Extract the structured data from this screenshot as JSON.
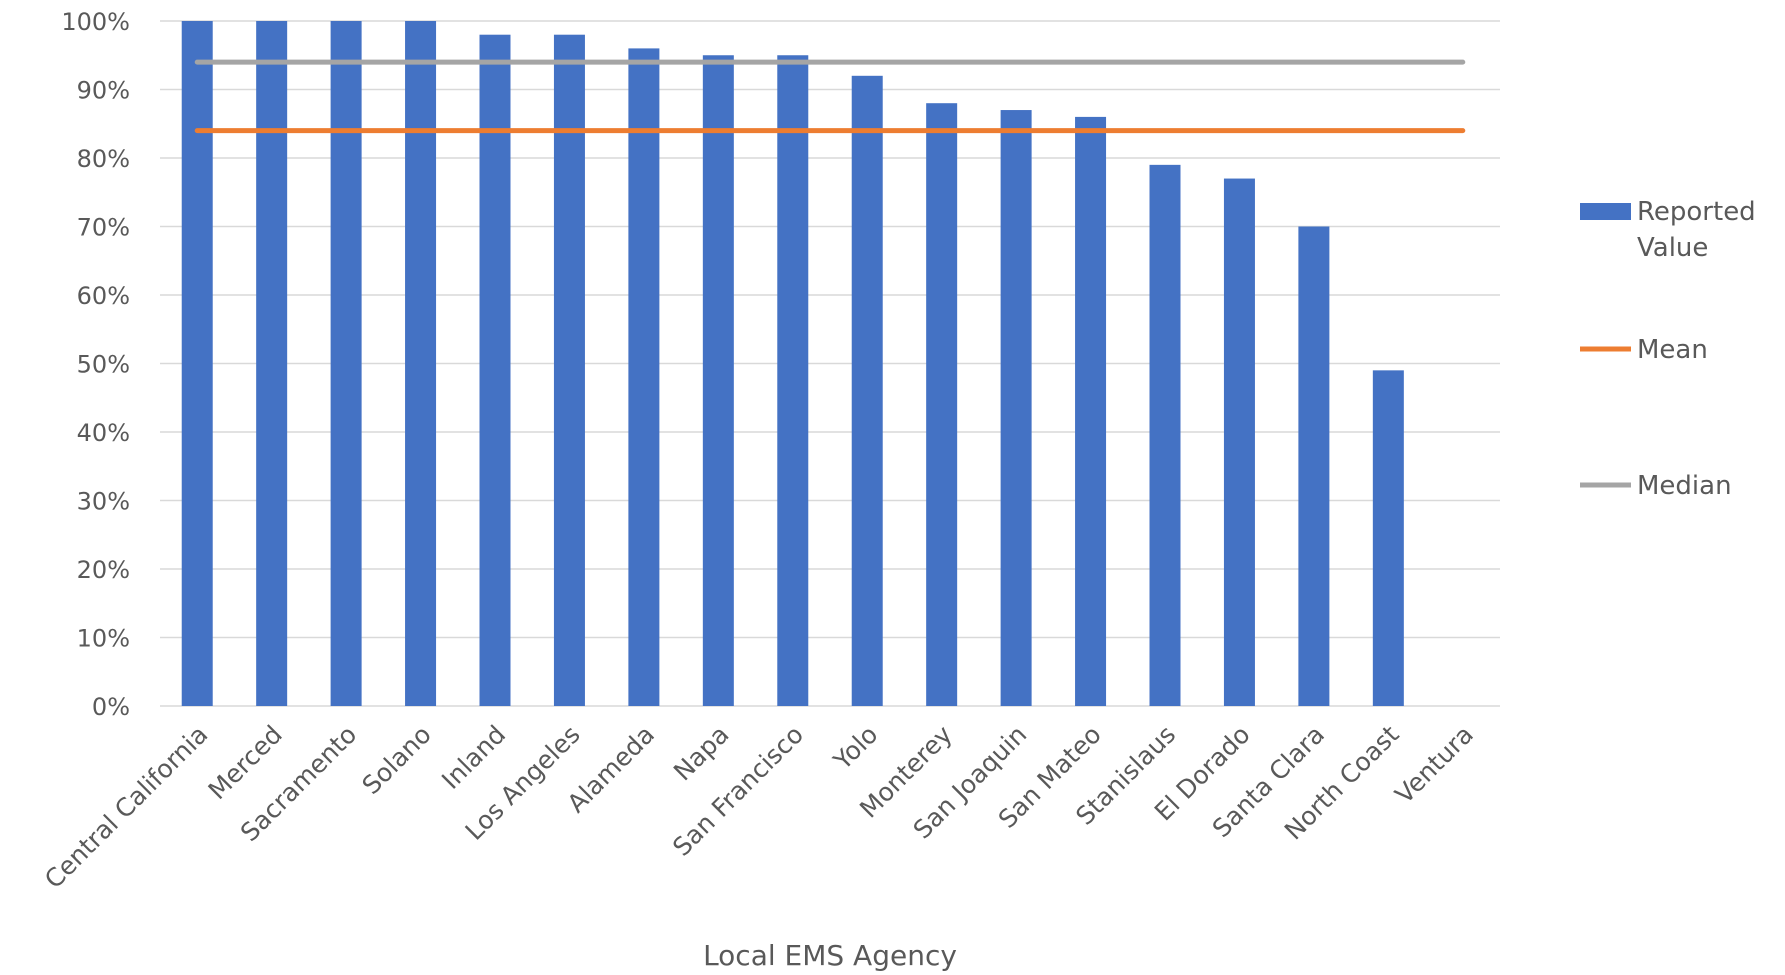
{
  "chart_data": {
    "type": "bar",
    "title": "",
    "xlabel": "Local EMS Agency",
    "ylabel": "",
    "ylim": [
      0,
      1
    ],
    "y_tick_format": "percent",
    "y_ticks": [
      "0%",
      "10%",
      "20%",
      "30%",
      "40%",
      "50%",
      "60%",
      "70%",
      "80%",
      "90%",
      "100%"
    ],
    "grid": true,
    "legend_position": "right",
    "categories": [
      "Central California",
      "Merced",
      "Sacramento",
      "Solano",
      "Inland",
      "Los Angeles",
      "Alameda",
      "Napa",
      "San Francisco",
      "Yolo",
      "Monterey",
      "San Joaquin",
      "San Mateo",
      "Stanislaus",
      "El Dorado",
      "Santa Clara",
      "North Coast",
      "Ventura"
    ],
    "series": [
      {
        "name": "Reported Value",
        "kind": "bar",
        "color": "#4472C4",
        "values": [
          1.0,
          1.0,
          1.0,
          1.0,
          0.98,
          0.98,
          0.96,
          0.95,
          0.95,
          0.92,
          0.88,
          0.87,
          0.86,
          0.79,
          0.77,
          0.7,
          0.49,
          0.0
        ]
      },
      {
        "name": "Mean",
        "kind": "line",
        "color": "#ED7D31",
        "value": 0.84
      },
      {
        "name": "Median",
        "kind": "line",
        "color": "#A5A5A5",
        "value": 0.94
      }
    ],
    "legend": {
      "reported_line1": "Reported",
      "reported_line2": "Value",
      "mean": "Mean",
      "median": "Median"
    }
  }
}
